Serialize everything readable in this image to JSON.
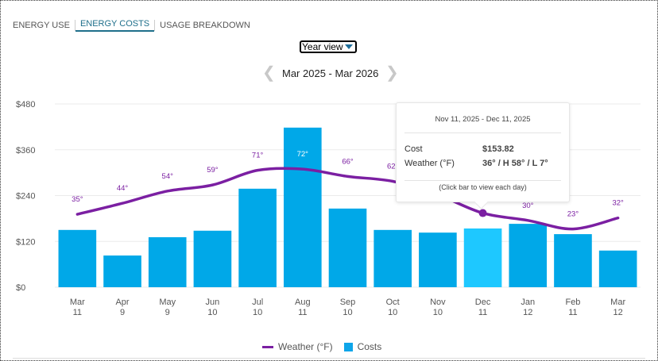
{
  "tabs": [
    {
      "label": "ENERGY USE",
      "active": false
    },
    {
      "label": "ENERGY COSTS",
      "active": true
    },
    {
      "label": "USAGE BREAKDOWN",
      "active": false
    }
  ],
  "view_select": {
    "value": "Year view"
  },
  "date_range": {
    "label": "Mar 2025 - Mar 2026",
    "prev_icon": "chevron-left-icon",
    "next_icon": "chevron-right-icon"
  },
  "tooltip": {
    "date": "Nov 11, 2025 - Dec 11, 2025",
    "cost_label": "Cost",
    "cost_value": "$153.82",
    "weather_label": "Weather (°F)",
    "weather_value": "36° / H 58° / L 7°",
    "note": "(Click bar to view each day)"
  },
  "legend": {
    "weather": "Weather (°F)",
    "costs": "Costs"
  },
  "colors": {
    "bar": "#00a8e8",
    "bar_selected": "#1ec8ff",
    "line": "#7b1fa2",
    "grid": "#ebebeb"
  },
  "chart_data": {
    "type": "bar",
    "title": "",
    "xlabel": "",
    "ylabel": "",
    "ylim": [
      0,
      480
    ],
    "yticks": [
      "$0",
      "$120",
      "$240",
      "$360",
      "$480"
    ],
    "ytick_values": [
      0,
      120,
      240,
      360,
      480
    ],
    "grid": true,
    "legend_position": "bottom-center",
    "categories": [
      {
        "month": "Mar",
        "day": "11"
      },
      {
        "month": "Apr",
        "day": "9"
      },
      {
        "month": "May",
        "day": "9"
      },
      {
        "month": "Jun",
        "day": "10"
      },
      {
        "month": "Jul",
        "day": "10"
      },
      {
        "month": "Aug",
        "day": "11"
      },
      {
        "month": "Sep",
        "day": "10"
      },
      {
        "month": "Oct",
        "day": "10"
      },
      {
        "month": "Nov",
        "day": "10"
      },
      {
        "month": "Dec",
        "day": "11"
      },
      {
        "month": "Jan",
        "day": "12"
      },
      {
        "month": "Feb",
        "day": "11"
      },
      {
        "month": "Mar",
        "day": "12"
      }
    ],
    "series": [
      {
        "name": "Costs",
        "type": "bar",
        "values": [
          150,
          83,
          131,
          148,
          258,
          418,
          206,
          150,
          143,
          153.82,
          166,
          139,
          96
        ],
        "selected_index": 9
      },
      {
        "name": "Weather (°F)",
        "type": "line",
        "values": [
          35,
          44,
          54,
          59,
          71,
          72,
          66,
          62,
          51,
          36,
          30,
          23,
          32
        ],
        "labels": [
          "35°",
          "44°",
          "54°",
          "59°",
          "71°",
          "72°",
          "66°",
          "62°",
          "",
          "",
          "30°",
          "23°",
          "32°"
        ]
      }
    ]
  }
}
